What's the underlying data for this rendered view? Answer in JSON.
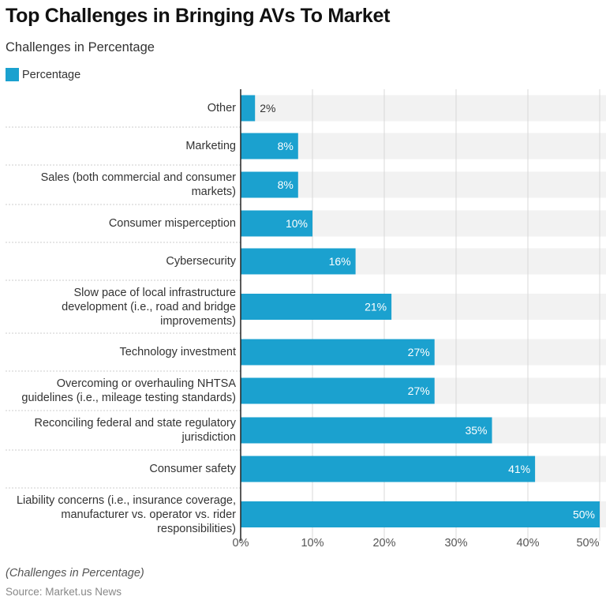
{
  "chart_data": {
    "type": "bar",
    "orientation": "horizontal",
    "title": "Top Challenges in Bringing AVs To Market",
    "subtitle": "Challenges in Percentage",
    "categories": [
      "Other",
      "Marketing",
      "Sales (both commercial and consumer\nmarkets)",
      "Consumer misperception",
      "Cybersecurity",
      "Slow pace of local infrastructure\ndevelopment (i.e., road and bridge\nimprovements)",
      "Technology investment",
      "Overcoming or overhauling NHTSA\nguidelines (i.e., mileage testing standards)",
      "Reconciling federal and state regulatory\njurisdiction",
      "Consumer safety",
      "Liability concerns (i.e., insurance coverage,\nmanufacturer vs. operator vs. rider\nresponsibilities)"
    ],
    "series": [
      {
        "name": "Percentage",
        "values": [
          2,
          8,
          8,
          10,
          16,
          21,
          27,
          27,
          35,
          41,
          50
        ],
        "color": "#1ba1cf"
      }
    ],
    "data_labels": [
      "2%",
      "8%",
      "8%",
      "10%",
      "16%",
      "21%",
      "27%",
      "27%",
      "35%",
      "41%",
      "50%"
    ],
    "xlim": [
      0,
      50
    ],
    "x_ticks": [
      "0%",
      "10%",
      "20%",
      "30%",
      "40%",
      "50%"
    ],
    "grid": true,
    "legend_position": "top-left",
    "background_track_color": "#f2f2f2",
    "note": "(Challenges in Percentage)",
    "source": "Source: Market.us News"
  }
}
